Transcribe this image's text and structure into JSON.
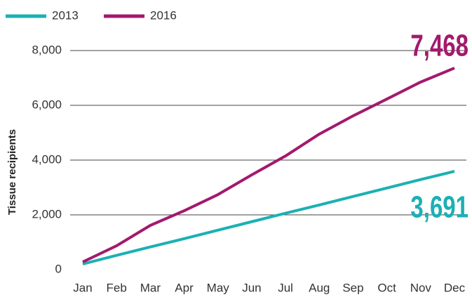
{
  "chart_data": {
    "type": "line",
    "y_label": "Tissue recipients",
    "categories": [
      "Jan",
      "Feb",
      "Mar",
      "Apr",
      "May",
      "Jun",
      "Jul",
      "Aug",
      "Sep",
      "Oct",
      "Nov",
      "Dec"
    ],
    "series": [
      {
        "name": "2013",
        "color": "#1bb0b5",
        "values": [
          205,
          520,
          830,
          1130,
          1440,
          1750,
          2060,
          2360,
          2670,
          2980,
          3290,
          3590
        ]
      },
      {
        "name": "2016",
        "color": "#a3196e",
        "values": [
          280,
          870,
          1615,
          2150,
          2740,
          3460,
          4150,
          4950,
          5615,
          6230,
          6850,
          7360
        ]
      }
    ],
    "annotations": [
      {
        "text": "7,468",
        "color": "#a3196e"
      },
      {
        "text": "3,691",
        "color": "#1bb0b5"
      }
    ],
    "ylim": [
      0,
      8000
    ],
    "yticks": [
      0,
      {
        "value": 2000,
        "label": "2,000"
      },
      {
        "value": 4000,
        "label": "4,000"
      },
      {
        "value": 6000,
        "label": "6,000"
      },
      {
        "value": 8000,
        "label": "8,000"
      }
    ],
    "grid": true,
    "legend": "top-left"
  }
}
